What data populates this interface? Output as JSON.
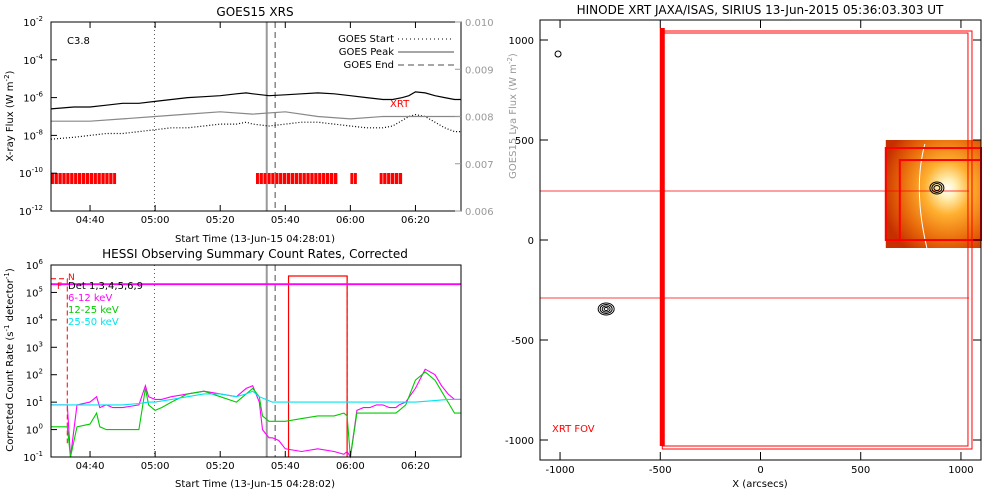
{
  "chart_data": [
    {
      "type": "line",
      "title": "GOES15 XRS",
      "xlabel": "Start Time (13-Jun-15 04:28:01)",
      "ylabel": "X-ray Flux (W m",
      "ylabel_sup": "-2",
      "ylabel_close": ")",
      "y2label": "GOES15 Lya Flux (W m",
      "y2label_sup": "-2",
      "y2label_close": ")",
      "ylog": true,
      "ylim": [
        -12,
        -2
      ],
      "xlim": [
        28,
        154
      ],
      "y2lim": [
        0.006,
        0.01
      ],
      "x_ticks": [
        {
          "t": 40,
          "label": "04:40"
        },
        {
          "t": 60,
          "label": "05:00"
        },
        {
          "t": 80,
          "label": "05:20"
        },
        {
          "t": 100,
          "label": "05:40"
        },
        {
          "t": 120,
          "label": "06:00"
        },
        {
          "t": 140,
          "label": "06:20"
        }
      ],
      "y_ticks": [
        {
          "v": -2,
          "base": "10",
          "exp": "-2"
        },
        {
          "v": -4,
          "base": "10",
          "exp": "-4"
        },
        {
          "v": -6,
          "base": "10",
          "exp": "-6"
        },
        {
          "v": -8,
          "base": "10",
          "exp": "-8"
        },
        {
          "v": -10,
          "base": "10",
          "exp": "-10"
        },
        {
          "v": -12,
          "base": "10",
          "exp": "-12"
        }
      ],
      "y2_ticks": [
        {
          "v": 0.01,
          "label": "0.010"
        },
        {
          "v": 0.009,
          "label": "0.009"
        },
        {
          "v": 0.008,
          "label": "0.008"
        },
        {
          "v": 0.007,
          "label": "0.007"
        },
        {
          "v": 0.006,
          "label": "0.006"
        }
      ],
      "flare_class": "C3.8",
      "annotation": "XRT",
      "legend_loc": "top-right",
      "legend": [
        {
          "label": "GOES Start",
          "style": "dotted"
        },
        {
          "label": "GOES Peak",
          "style": "solid"
        },
        {
          "label": "GOES End",
          "style": "dashed"
        }
      ],
      "goes_start": 59.8,
      "goes_peak": 94.3,
      "goes_end": 96.9,
      "series": [
        {
          "color": "#000000",
          "style": "solid",
          "x": [
            28,
            35,
            40,
            45,
            50,
            55,
            60,
            65,
            70,
            75,
            80,
            85,
            88,
            90,
            95,
            100,
            105,
            110,
            115,
            120,
            125,
            130,
            133,
            136,
            138,
            140,
            143,
            146,
            149,
            152,
            154
          ],
          "values": [
            -6.6,
            -6.5,
            -6.5,
            -6.4,
            -6.3,
            -6.3,
            -6.2,
            -6.1,
            -6.0,
            -5.95,
            -5.9,
            -5.8,
            -5.75,
            -5.8,
            -5.9,
            -5.85,
            -5.8,
            -5.75,
            -5.8,
            -5.9,
            -6.0,
            -6.1,
            -6.1,
            -6.0,
            -5.9,
            -5.7,
            -5.75,
            -5.9,
            -6.0,
            -6.1,
            -6.1
          ]
        },
        {
          "color": "#000000",
          "style": "dotted",
          "x": [
            28,
            35,
            40,
            45,
            50,
            55,
            60,
            65,
            70,
            75,
            80,
            85,
            88,
            90,
            95,
            100,
            105,
            110,
            115,
            120,
            125,
            130,
            133,
            136,
            138,
            140,
            143,
            146,
            149,
            152,
            154
          ],
          "values": [
            -8.2,
            -8.1,
            -8.0,
            -7.9,
            -7.9,
            -7.8,
            -7.7,
            -7.6,
            -7.6,
            -7.5,
            -7.4,
            -7.4,
            -7.3,
            -7.4,
            -7.5,
            -7.4,
            -7.3,
            -7.3,
            -7.4,
            -7.5,
            -7.6,
            -7.6,
            -7.5,
            -7.2,
            -7.0,
            -6.9,
            -7.0,
            -7.3,
            -7.6,
            -7.8,
            -7.8
          ]
        },
        {
          "color": "#888888",
          "style": "solid",
          "axis": "y2",
          "x": [
            28,
            40,
            50,
            60,
            70,
            80,
            90,
            100,
            110,
            120,
            130,
            140,
            150,
            154
          ],
          "values": [
            0.0079,
            0.0079,
            0.00795,
            0.008,
            0.00805,
            0.0081,
            0.00805,
            0.0081,
            0.008,
            0.00795,
            0.008,
            0.008,
            0.008,
            0.008
          ]
        }
      ],
      "obs_bars": [
        [
          28,
          48
        ],
        [
          91,
          116
        ],
        [
          120,
          122
        ],
        [
          129,
          136
        ]
      ]
    },
    {
      "type": "line",
      "title": "HESSI Observing Summary Count Rates, Corrected",
      "xlabel": "Start Time (13-Jun-15 04:28:02)",
      "ylabel": "Corrected Count Rate (s",
      "ylabel_sup": "-1",
      "ylabel_mid": " detector",
      "ylabel_sup2": "-1",
      "ylabel_close": ")",
      "ylog": true,
      "ylim": [
        -1,
        6
      ],
      "xlim": [
        28,
        154
      ],
      "x_ticks": [
        {
          "t": 40,
          "label": "04:40"
        },
        {
          "t": 60,
          "label": "05:00"
        },
        {
          "t": 80,
          "label": "05:20"
        },
        {
          "t": 100,
          "label": "05:40"
        },
        {
          "t": 120,
          "label": "06:00"
        },
        {
          "t": 140,
          "label": "06:20"
        }
      ],
      "y_ticks": [
        {
          "v": 6,
          "base": "10",
          "exp": "6"
        },
        {
          "v": 5,
          "base": "10",
          "exp": "5"
        },
        {
          "v": 4,
          "base": "10",
          "exp": "4"
        },
        {
          "v": 3,
          "base": "10",
          "exp": "3"
        },
        {
          "v": 2,
          "base": "10",
          "exp": "2"
        },
        {
          "v": 1,
          "base": "10",
          "exp": "1"
        },
        {
          "v": 0,
          "base": "10",
          "exp": "0"
        },
        {
          "v": -1,
          "base": "10",
          "exp": "-1"
        }
      ],
      "flag_labels": [
        "N",
        "F"
      ],
      "legend_loc": "top-left",
      "goes_start": 59.8,
      "goes_peak": 94.3,
      "goes_end": 96.9,
      "series": [
        {
          "name": "Det 1,3,4,5,6,9",
          "color": "#000000",
          "x": [],
          "values": []
        },
        {
          "name": "6-12 keV",
          "color": "#ff00ff",
          "x": [
            28,
            31,
            33,
            34,
            36,
            40,
            42,
            43,
            45,
            47,
            50,
            55,
            57,
            58,
            60,
            62,
            65,
            70,
            75,
            80,
            85,
            88,
            90,
            92,
            93,
            95,
            96,
            98,
            100,
            105,
            110,
            115,
            118,
            119,
            120,
            122,
            124,
            126,
            128,
            130,
            132,
            134,
            135,
            137,
            140,
            143,
            146,
            148,
            150,
            152,
            154
          ],
          "values": [
            0.9,
            0.9,
            0.9,
            -1,
            0.9,
            1.0,
            1.2,
            0.8,
            0.9,
            0.8,
            0.8,
            0.9,
            1.6,
            1.2,
            1.1,
            1.1,
            1.2,
            1.3,
            1.4,
            1.3,
            1.2,
            1.5,
            1.6,
            1.0,
            0.0,
            -0.3,
            -0.3,
            -0.4,
            -0.7,
            -0.8,
            -0.7,
            -0.8,
            -0.9,
            -0.8,
            -1,
            0.7,
            0.8,
            0.8,
            0.9,
            0.9,
            0.8,
            0.8,
            0.9,
            1.0,
            1.5,
            2.2,
            2.0,
            1.6,
            1.3,
            1.1,
            1.1
          ]
        },
        {
          "name": "12-25 keV",
          "color": "#00cc00",
          "x": [
            28,
            31,
            33,
            34,
            36,
            40,
            42,
            43,
            45,
            47,
            50,
            55,
            57,
            58,
            60,
            62,
            65,
            70,
            75,
            80,
            85,
            88,
            90,
            92,
            93,
            95,
            96,
            98,
            100,
            105,
            110,
            115,
            118,
            119,
            120,
            122,
            124,
            126,
            128,
            130,
            132,
            134,
            135,
            137,
            140,
            143,
            146,
            148,
            150,
            152,
            154
          ],
          "values": [
            0.1,
            0.1,
            0.1,
            -1,
            0.1,
            0.2,
            0.6,
            0.1,
            0.0,
            0.0,
            0.0,
            0.0,
            1.5,
            0.9,
            0.7,
            0.8,
            1.0,
            1.3,
            1.4,
            1.2,
            1.0,
            1.3,
            1.5,
            1.2,
            0.5,
            0.3,
            0.3,
            0.3,
            0.3,
            0.4,
            0.5,
            0.5,
            0.6,
            0.5,
            -1,
            0.6,
            0.6,
            0.6,
            0.6,
            0.6,
            0.6,
            0.6,
            0.7,
            0.9,
            1.8,
            2.1,
            1.8,
            1.4,
            1.0,
            0.6,
            0.6
          ]
        },
        {
          "name": "25-50 keV",
          "color": "#00e5ee",
          "x": [
            28,
            35,
            40,
            45,
            50,
            55,
            58,
            60,
            65,
            70,
            75,
            80,
            85,
            88,
            90,
            92,
            94,
            96,
            98,
            100,
            105,
            110,
            115,
            120,
            125,
            130,
            135,
            140,
            145,
            150,
            154
          ],
          "values": [
            0.9,
            0.9,
            0.9,
            0.9,
            0.9,
            0.95,
            1.0,
            1.0,
            1.1,
            1.2,
            1.3,
            1.3,
            1.2,
            1.3,
            1.4,
            1.2,
            1.1,
            1.0,
            1.0,
            1.0,
            1.0,
            1.0,
            1.0,
            1.0,
            1.0,
            1.0,
            1.0,
            1.0,
            1.05,
            1.1,
            1.1
          ]
        },
        {
          "color": "#ff00ff",
          "style": "flat",
          "x": [
            28,
            32,
            33,
            154
          ],
          "values": [
            5.3,
            5.3,
            5.3,
            5.3
          ]
        }
      ]
    },
    {
      "type": "scatter",
      "title": "HINODE XRT JAXA/ISAS, SIRIUS 13-Jun-2015 05:36:03.303 UT",
      "xlabel": "X (arcsecs)",
      "ylabel": "",
      "xlim": [
        -1100,
        1100
      ],
      "ylim": [
        -1100,
        1100
      ],
      "x_ticks": [
        -1000,
        -500,
        0,
        500,
        1000
      ],
      "y_ticks": [
        1000,
        500,
        0,
        -500,
        -1000
      ],
      "fov_label": "XRT FOV",
      "image_region": {
        "x": [
          625,
          1100
        ],
        "y": [
          -40,
          500
        ]
      },
      "features": [
        {
          "kind": "contour",
          "x": -1010,
          "y": 930
        },
        {
          "kind": "contour",
          "x": -770,
          "y": -345
        },
        {
          "kind": "contour",
          "x": 880,
          "y": 260
        }
      ],
      "fov_lines": {
        "vertical": -490,
        "horizontal": [
          245,
          -290
        ]
      }
    }
  ]
}
